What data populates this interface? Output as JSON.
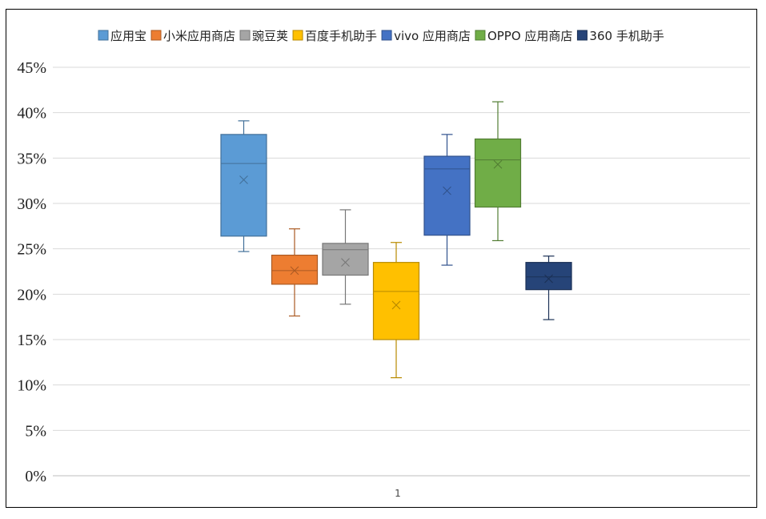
{
  "chart_data": {
    "type": "boxplot",
    "title": "",
    "xlabel": "",
    "ylabel": "",
    "categories": [
      "1"
    ],
    "ylim": [
      0,
      45
    ],
    "y_ticks": [
      "0%",
      "5%",
      "10%",
      "15%",
      "20%",
      "25%",
      "30%",
      "35%",
      "40%",
      "45%"
    ],
    "y_tick_values": [
      0,
      5,
      10,
      15,
      20,
      25,
      30,
      35,
      40,
      45
    ],
    "grid": true,
    "legend_position": "top",
    "series": [
      {
        "name": "应用宝",
        "color": "#5B9BD5",
        "min": 24.7,
        "q1": 26.4,
        "median": 34.4,
        "q3": 37.6,
        "max": 39.1,
        "mean": 32.6
      },
      {
        "name": "小米应用商店",
        "color": "#ED7D31",
        "min": 17.6,
        "q1": 21.1,
        "median": 22.6,
        "q3": 24.3,
        "max": 27.2,
        "mean": 22.6
      },
      {
        "name": "豌豆荚",
        "color": "#A5A5A5",
        "min": 18.9,
        "q1": 22.1,
        "median": 24.9,
        "q3": 25.6,
        "max": 29.3,
        "mean": 23.5
      },
      {
        "name": "百度手机助手",
        "color": "#FFC000",
        "min": 10.8,
        "q1": 15.0,
        "median": 20.3,
        "q3": 23.5,
        "max": 25.7,
        "mean": 18.8
      },
      {
        "name": "vivo 应用商店",
        "color": "#4472C4",
        "min": 23.2,
        "q1": 26.5,
        "median": 33.8,
        "q3": 35.2,
        "max": 37.6,
        "mean": 31.4
      },
      {
        "name": "OPPO 应用商店",
        "color": "#70AD47",
        "min": 25.9,
        "q1": 29.6,
        "median": 34.8,
        "q3": 37.1,
        "max": 41.2,
        "mean": 34.3
      },
      {
        "name": "360 手机助手",
        "color": "#264478",
        "min": 17.2,
        "q1": 20.5,
        "median": 21.9,
        "q3": 23.5,
        "max": 24.2,
        "mean": 21.7
      }
    ]
  }
}
